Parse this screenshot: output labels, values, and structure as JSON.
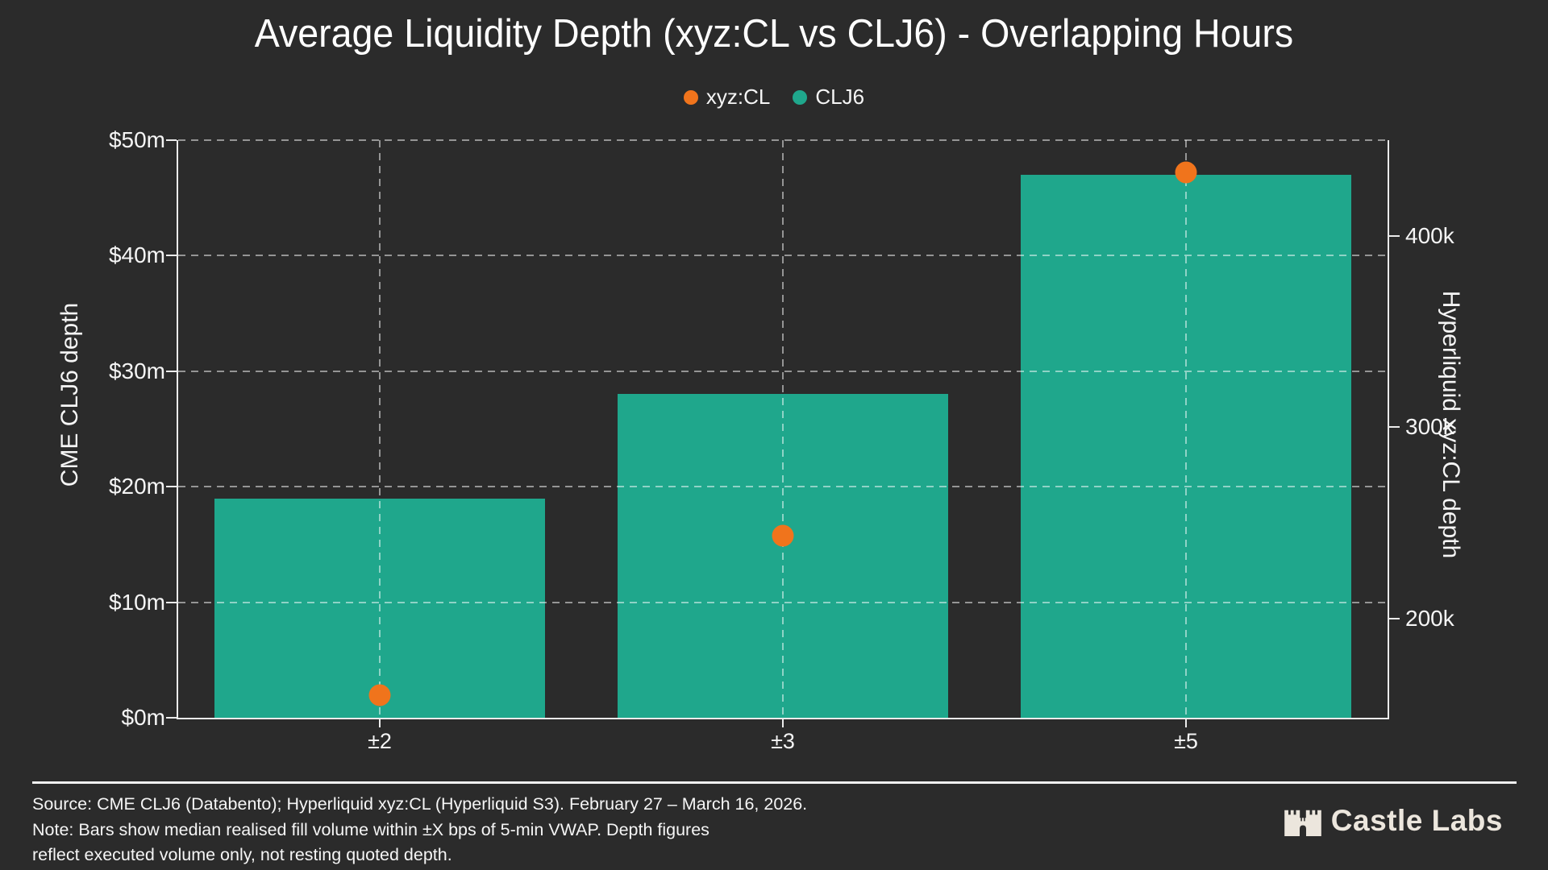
{
  "title": "Average Liquidity Depth (xyz:CL vs CLJ6) - Overlapping Hours",
  "legend": {
    "items": [
      {
        "label": "xyz:CL",
        "color": "#f0741c"
      },
      {
        "label": "CLJ6",
        "color": "#1fa78c"
      }
    ]
  },
  "chart_data": {
    "type": "bar",
    "categories": [
      "±2",
      "±3",
      "±5"
    ],
    "series": [
      {
        "name": "CLJ6",
        "plot": "bar",
        "axis": "left",
        "units": "$m",
        "values": [
          19,
          28,
          47
        ],
        "color": "#1fa78c"
      },
      {
        "name": "xyz:CL",
        "plot": "scatter",
        "axis": "right",
        "units": "k",
        "values": [
          160,
          243,
          433
        ],
        "color": "#f0741c"
      }
    ],
    "xlabel": "",
    "ylabel_left": "CME CLJ6 depth",
    "ylabel_right": "Hyperliquid xyz:CL depth",
    "ylim_left": [
      0,
      50
    ],
    "yticks_left_values": [
      0,
      10,
      20,
      30,
      40,
      50
    ],
    "yticks_left_labels": [
      "$0m",
      "$10m",
      "$20m",
      "$30m",
      "$40m",
      "$50m"
    ],
    "ylim_right": [
      148,
      450
    ],
    "yticks_right_values": [
      200,
      300,
      400
    ],
    "yticks_right_labels": [
      "200k",
      "300k",
      "400k"
    ],
    "grid": true,
    "legend_position": "top-center",
    "bar_width_fraction": 0.82
  },
  "footer": {
    "line1": "Source: CME CLJ6 (Databento); Hyperliquid xyz:CL (Hyperliquid S3). February 27 – March 16, 2026.",
    "line2": "Note: Bars show median realised fill volume within ±X bps of 5-min VWAP. Depth figures",
    "line3": "reflect executed volume only, not resting quoted depth."
  },
  "branding": {
    "name": "Castle Labs",
    "icon": "castle-icon"
  },
  "colors": {
    "background": "#2b2b2b",
    "bar": "#1fa78c",
    "dot": "#f0741c",
    "grid": "rgba(255,255,255,0.5)",
    "axis": "#ebebeb",
    "text": "#f5f5f5"
  }
}
